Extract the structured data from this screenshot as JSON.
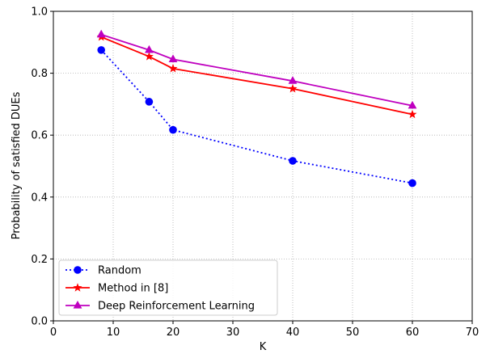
{
  "chart_data": {
    "type": "line",
    "title": "",
    "xlabel": "K",
    "ylabel": "Probability of satisfied DUEs",
    "xlim": [
      0,
      70
    ],
    "ylim": [
      0,
      1.0
    ],
    "xticks": [
      0,
      10,
      20,
      30,
      40,
      50,
      60,
      70
    ],
    "yticks": [
      0.0,
      0.2,
      0.4,
      0.6,
      0.8,
      1.0
    ],
    "xtick_labels": [
      "0",
      "10",
      "20",
      "30",
      "40",
      "50",
      "60",
      "70"
    ],
    "ytick_labels": [
      "0.0",
      "0.2",
      "0.4",
      "0.6",
      "0.8",
      "1.0"
    ],
    "grid": true,
    "legend_position": "lower-left",
    "series": [
      {
        "name": "Random",
        "color": "#0000ff",
        "line_style": "dotted",
        "marker": "circle",
        "x": [
          8,
          16,
          20,
          40,
          60
        ],
        "y": [
          0.875,
          0.708,
          0.617,
          0.517,
          0.445
        ]
      },
      {
        "name": "Method in [8]",
        "color": "#ff0000",
        "line_style": "solid",
        "marker": "star",
        "x": [
          8,
          16,
          20,
          40,
          60
        ],
        "y": [
          0.917,
          0.854,
          0.815,
          0.75,
          0.667
        ]
      },
      {
        "name": "Deep Reinforcement Learning",
        "color": "#bf00bf",
        "line_style": "solid",
        "marker": "triangle",
        "x": [
          8,
          16,
          20,
          40,
          60
        ],
        "y": [
          0.925,
          0.875,
          0.845,
          0.775,
          0.695
        ]
      }
    ]
  }
}
